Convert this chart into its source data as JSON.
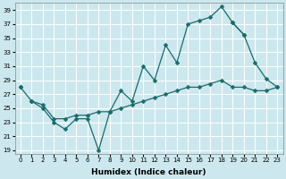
{
  "xlabel": "Humidex (Indice chaleur)",
  "background_color": "#cce8ee",
  "grid_color": "#ffffff",
  "line_color": "#1a6b6b",
  "xlim": [
    -0.5,
    23.5
  ],
  "ylim": [
    18.5,
    40.0
  ],
  "yticks": [
    19,
    21,
    23,
    25,
    27,
    29,
    31,
    33,
    35,
    37,
    39
  ],
  "xticks": [
    0,
    1,
    2,
    3,
    4,
    5,
    6,
    7,
    8,
    9,
    10,
    11,
    12,
    13,
    14,
    15,
    16,
    17,
    18,
    19,
    20,
    21,
    22,
    23
  ],
  "series1_x": [
    0,
    1,
    2,
    3,
    4,
    5,
    6,
    7,
    8,
    9,
    10,
    11,
    12,
    13,
    14,
    15,
    16,
    17,
    18,
    19,
    20,
    21,
    22,
    23
  ],
  "series1_y": [
    28.0,
    26.0,
    25.0,
    23.0,
    22.0,
    23.5,
    23.5,
    19.0,
    24.5,
    27.5,
    26.0,
    31.0,
    29.0,
    34.0,
    31.5,
    37.0,
    37.5,
    38.0,
    39.5,
    37.2,
    35.5,
    null,
    null,
    null
  ],
  "series2_x": [
    0,
    1,
    2,
    3,
    4,
    5,
    6,
    7,
    8,
    9,
    10,
    11,
    12,
    13,
    14,
    15,
    16,
    17,
    18,
    19,
    20,
    21,
    22,
    23
  ],
  "series2_y": [
    28.0,
    null,
    null,
    null,
    null,
    null,
    null,
    null,
    null,
    null,
    null,
    null,
    null,
    null,
    null,
    null,
    null,
    null,
    null,
    37.2,
    35.5,
    31.5,
    29.2,
    28.0
  ],
  "series3_x": [
    1,
    2,
    3,
    4,
    5,
    6,
    7,
    8,
    9,
    10,
    11,
    12,
    13,
    14,
    15,
    16,
    17,
    18,
    19,
    20,
    21,
    22,
    23
  ],
  "series3_y": [
    26.0,
    25.5,
    23.5,
    23.5,
    24.0,
    24.0,
    24.5,
    24.5,
    25.0,
    25.5,
    26.0,
    26.5,
    27.0,
    27.5,
    28.0,
    28.0,
    28.5,
    29.0,
    28.0,
    28.0,
    27.5,
    27.5,
    28.0
  ]
}
